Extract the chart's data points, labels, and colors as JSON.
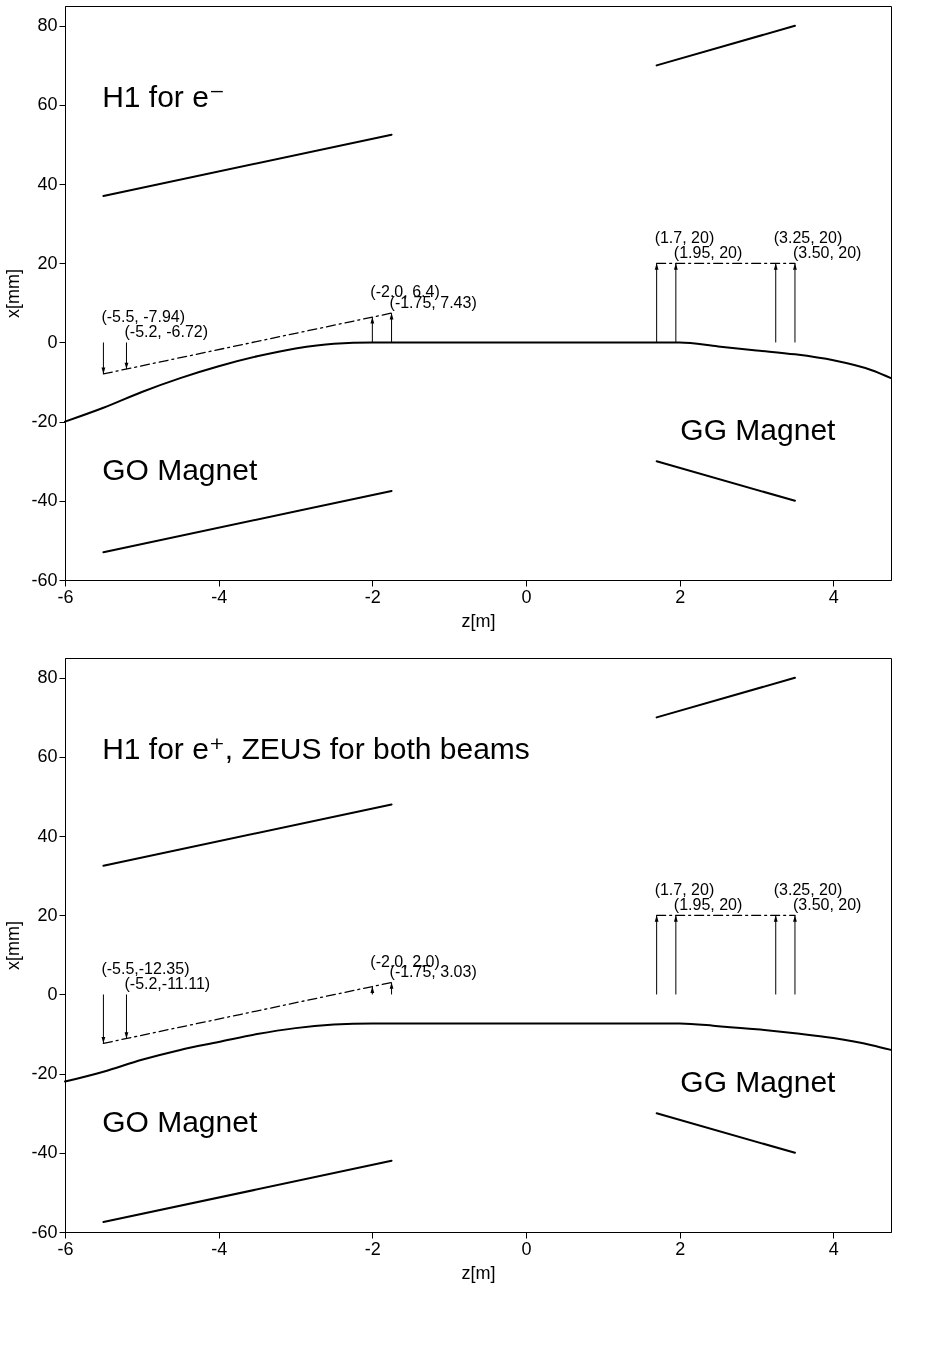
{
  "chart_data": [
    {
      "type": "line",
      "xlabel": "z[m]",
      "ylabel": "x[mm]",
      "xlim": [
        -6,
        4.75
      ],
      "ylim": [
        -60,
        85
      ],
      "xticks": [
        -6,
        -4,
        -2,
        0,
        2,
        4
      ],
      "yticks": [
        -60,
        -40,
        -20,
        0,
        20,
        40,
        60,
        80
      ],
      "grid": false,
      "series": [
        {
          "color": "#000000",
          "x": [
            -6,
            -5.5,
            -5,
            -4.5,
            -4,
            -3.5,
            -3,
            -2.5,
            -2,
            1.5,
            2,
            2.5,
            3,
            3.5,
            4,
            4.5,
            4.75
          ],
          "values": [
            -20,
            -16.5,
            -12.5,
            -9,
            -6,
            -3.5,
            -1.5,
            -0.3,
            0,
            0,
            0,
            -1,
            -2,
            -3,
            -4.5,
            -7,
            -9
          ]
        },
        {
          "color": "#000000",
          "x": [
            -5.5,
            -1.75
          ],
          "values": [
            37,
            52.5
          ]
        },
        {
          "color": "#000000",
          "x": [
            -5.5,
            -1.75
          ],
          "values": [
            -53,
            -37.5
          ]
        },
        {
          "color": "#000000",
          "x": [
            1.7,
            3.5
          ],
          "values": [
            70,
            80
          ]
        },
        {
          "color": "#000000",
          "x": [
            1.7,
            3.5
          ],
          "values": [
            -30,
            -40
          ]
        },
        {
          "color": "#000000",
          "line_style": "dashed",
          "x": [
            -5.5,
            -1.75
          ],
          "values": [
            -7.94,
            7.43
          ]
        },
        {
          "color": "#000000",
          "line_style": "dashed",
          "x": [
            1.7,
            3.5
          ],
          "values": [
            20,
            20
          ]
        }
      ],
      "annotations": [
        "H1 for e⁻",
        "GO Magnet",
        "GG Magnet",
        {
          "text": "(-5.5, -7.94)",
          "x": -5.5,
          "y": -7.94
        },
        {
          "text": "(-5.2, -6.72)",
          "x": -5.2,
          "y": -6.72
        },
        {
          "text": "(-2.0, 6.4)",
          "x": -2.0,
          "y": 6.4
        },
        {
          "text": "(-1.75, 7.43)",
          "x": -1.75,
          "y": 7.43
        },
        {
          "text": "(1.7, 20)",
          "x": 1.7,
          "y": 20
        },
        {
          "text": "(1.95, 20)",
          "x": 1.95,
          "y": 20
        },
        {
          "text": "(3.25, 20)",
          "x": 3.25,
          "y": 20
        },
        {
          "text": "(3.50, 20)",
          "x": 3.5,
          "y": 20
        }
      ]
    },
    {
      "type": "line",
      "xlabel": "z[m]",
      "ylabel": "x[mm]",
      "xlim": [
        -6,
        4.75
      ],
      "ylim": [
        -60,
        85
      ],
      "xticks": [
        -6,
        -4,
        -2,
        0,
        2,
        4
      ],
      "yticks": [
        -60,
        -40,
        -20,
        0,
        20,
        40,
        60,
        80
      ],
      "grid": false,
      "series": [
        {
          "color": "#000000",
          "x": [
            -6,
            -5.5,
            -5,
            -4.5,
            -4,
            -3.5,
            -3,
            -2.5,
            -2,
            2,
            2.5,
            3,
            3.5,
            4,
            4.5,
            4.75
          ],
          "values": [
            -22,
            -19.5,
            -16.5,
            -14,
            -12,
            -10,
            -8.5,
            -7.6,
            -7.3,
            -7.3,
            -8,
            -8.8,
            -9.8,
            -11,
            -12.8,
            -14
          ]
        },
        {
          "color": "#000000",
          "x": [
            -5.5,
            -1.75
          ],
          "values": [
            32.5,
            48
          ]
        },
        {
          "color": "#000000",
          "x": [
            -5.5,
            -1.75
          ],
          "values": [
            -57.5,
            -42
          ]
        },
        {
          "color": "#000000",
          "x": [
            1.7,
            3.5
          ],
          "values": [
            70,
            80
          ]
        },
        {
          "color": "#000000",
          "x": [
            1.7,
            3.5
          ],
          "values": [
            -30,
            -40
          ]
        },
        {
          "color": "#000000",
          "line_style": "dashed",
          "x": [
            -5.5,
            -1.75
          ],
          "values": [
            -12.35,
            3.03
          ]
        },
        {
          "color": "#000000",
          "line_style": "dashed",
          "x": [
            1.7,
            3.5
          ],
          "values": [
            20,
            20
          ]
        }
      ],
      "annotations": [
        "H1 for e⁺, ZEUS for both beams",
        "GO Magnet",
        "GG Magnet",
        {
          "text": "(-5.5,-12.35)",
          "x": -5.5,
          "y": -12.35
        },
        {
          "text": "(-5.2,-11.11)",
          "x": -5.2,
          "y": -11.11
        },
        {
          "text": "(-2.0, 2.0)",
          "x": -2.0,
          "y": 2.0
        },
        {
          "text": "(-1.75, 3.03)",
          "x": -1.75,
          "y": 3.03
        },
        {
          "text": "(1.7, 20)",
          "x": 1.7,
          "y": 20
        },
        {
          "text": "(1.95, 20)",
          "x": 1.95,
          "y": 20
        },
        {
          "text": "(3.25, 20)",
          "x": 3.25,
          "y": 20
        },
        {
          "text": "(3.50, 20)",
          "x": 3.5,
          "y": 20
        }
      ]
    }
  ]
}
